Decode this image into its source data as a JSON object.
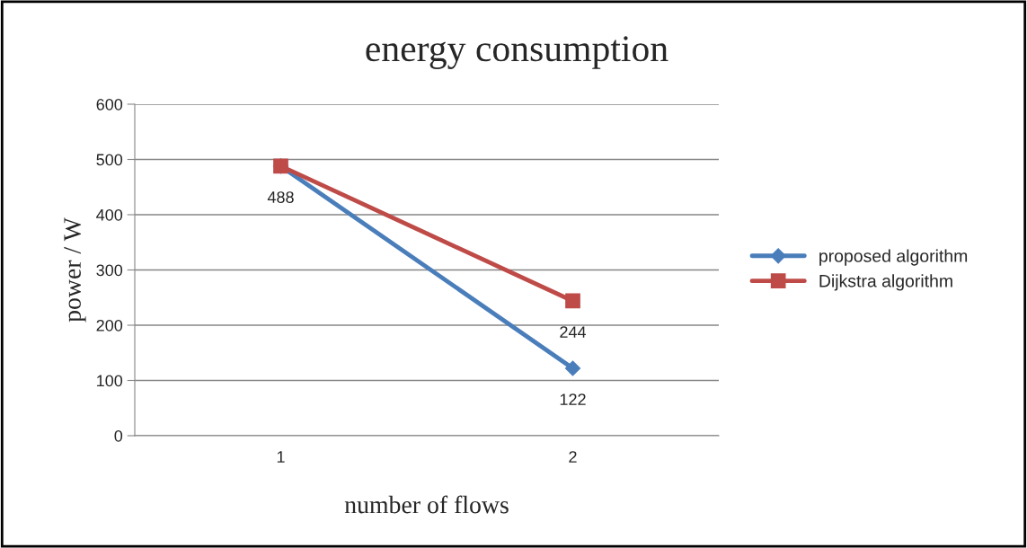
{
  "chart_data": {
    "type": "line",
    "title": "energy consumption",
    "xlabel": "number of flows",
    "ylabel": "power / W",
    "categories": [
      "1",
      "2"
    ],
    "series": [
      {
        "name": "proposed algorithm",
        "color": "#4a7ebb",
        "marker": "diamond",
        "values": [
          488,
          122
        ],
        "value_labels": [
          "488",
          "122"
        ]
      },
      {
        "name": "Dijkstra algorithm",
        "color": "#be4b48",
        "marker": "square",
        "values": [
          488,
          244
        ],
        "value_labels": [
          null,
          "244"
        ]
      }
    ],
    "ylim": [
      0,
      600
    ],
    "yticks": [
      0,
      100,
      200,
      300,
      400,
      500,
      600
    ],
    "grid": "y",
    "legend": "right",
    "line_style": "solid"
  }
}
